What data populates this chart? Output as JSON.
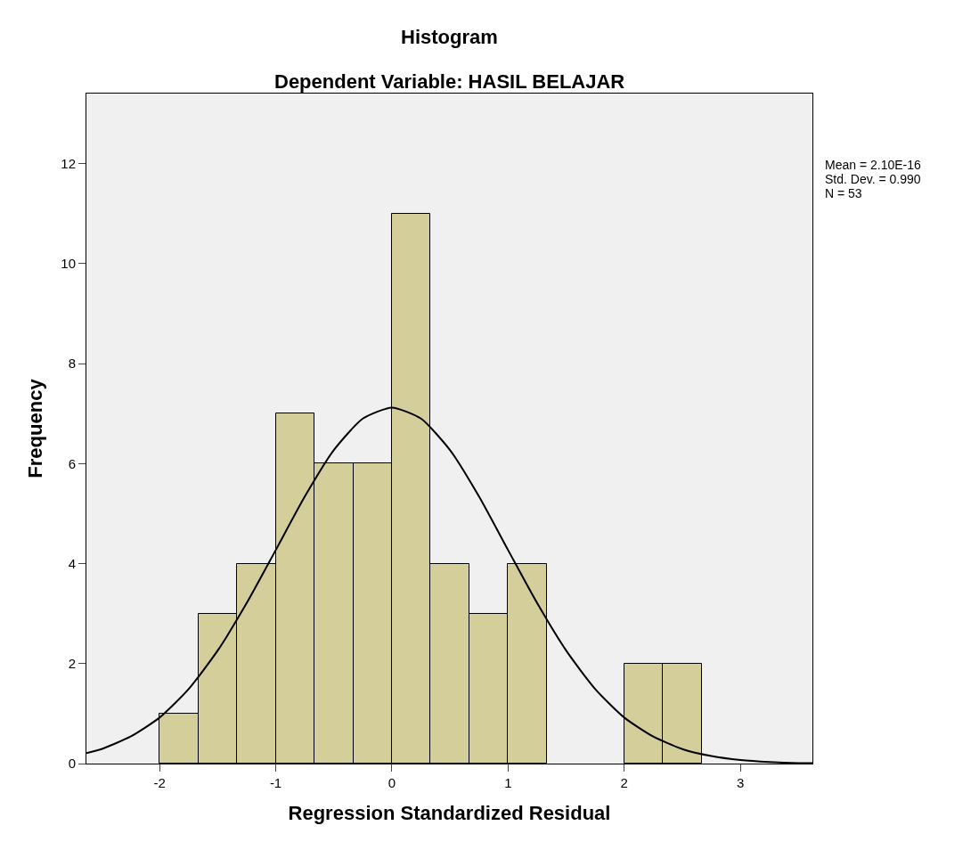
{
  "chart_data": {
    "type": "histogram",
    "title": "Histogram",
    "subtitle": "Dependent Variable: HASIL BELAJAR",
    "xlabel": "Regression Standardized Residual",
    "ylabel": "Frequency",
    "bins": [
      -2,
      -1.667,
      -1.333,
      -1,
      -0.667,
      -0.333,
      0,
      0.333,
      0.667,
      1,
      1.333,
      1.667,
      2,
      2.333,
      2.667
    ],
    "values": [
      1,
      3,
      4,
      7,
      6,
      6,
      11,
      4,
      3,
      4,
      0,
      0,
      2,
      2
    ],
    "color": "#d4cf9a",
    "series": [
      {
        "type": "line",
        "color": "#000000",
        "x": [
          -2.63,
          -2.5,
          -2.25,
          -2,
          -1.75,
          -1.5,
          -1.25,
          -1,
          -0.75,
          -0.5,
          -0.25,
          0,
          0.25,
          0.5,
          0.75,
          1,
          1.25,
          1.5,
          1.75,
          2,
          2.25,
          2.5,
          2.75,
          3,
          3.25,
          3.5,
          3.62
        ],
        "values": [
          0.21,
          0.29,
          0.54,
          0.92,
          1.49,
          2.26,
          3.21,
          4.27,
          5.34,
          6.27,
          6.9,
          7.12,
          6.9,
          6.27,
          5.34,
          4.27,
          3.21,
          2.26,
          1.49,
          0.92,
          0.54,
          0.29,
          0.15,
          0.07,
          0.03,
          0.01,
          0.01
        ]
      }
    ],
    "xlim": [
      -2.63,
      3.62
    ],
    "xticks": [
      -2,
      -1,
      0,
      1,
      2,
      3
    ],
    "ylim": [
      0,
      13.4
    ],
    "yticks": [
      0,
      2,
      4,
      6,
      8,
      10,
      12
    ],
    "annotations": [
      "Mean = 2.10E-16",
      "Std. Dev. = 0.990",
      "N = 53"
    ]
  }
}
